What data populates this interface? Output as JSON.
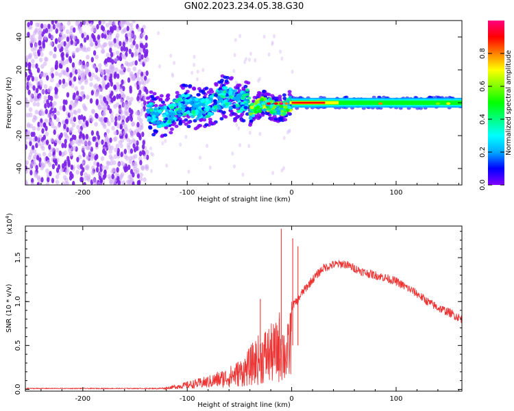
{
  "title": "GN02.2023.234.05.38.G30",
  "chart_data": [
    {
      "type": "heatmap",
      "title": "GN02.2023.234.05.38.G30",
      "xlabel": "Height of straight line (km)",
      "ylabel": "Frequency (Hz)",
      "xlim": [
        -255,
        163
      ],
      "ylim": [
        -50,
        50
      ],
      "xticks": [
        -200,
        -100,
        0,
        100
      ],
      "xtick_labels": [
        "-200",
        "-100",
        "0",
        "100"
      ],
      "yticks": [
        -40,
        -20,
        0,
        20,
        40
      ],
      "ytick_labels": [
        "-40",
        "-20",
        "0",
        "20",
        "40"
      ],
      "colorbar": {
        "label": "Normalized spectral amplitude",
        "range": [
          0,
          1
        ],
        "ticks": [
          0.0,
          0.2,
          0.4,
          0.6,
          0.8
        ],
        "tick_labels": [
          "0.0",
          "0.2",
          "0.4",
          "0.6",
          "0.8"
        ],
        "colormap": [
          "#7f00ff",
          "#0000ff",
          "#00aaff",
          "#00ffff",
          "#00ff80",
          "#00ff00",
          "#80ff00",
          "#ffff00",
          "#ff8000",
          "#ff0000",
          "#ff0080"
        ]
      },
      "features": [
        {
          "region": "noise",
          "x_range": [
            -255,
            -138
          ],
          "amplitude": "0.0-0.1"
        },
        {
          "region": "trace",
          "x_range": [
            -138,
            -40
          ],
          "center_freq_hz": [
            -8,
            5
          ],
          "amplitude": "0.1-0.4"
        },
        {
          "region": "trace",
          "x_range": [
            -40,
            0
          ],
          "center_freq_hz": [
            -5,
            0
          ],
          "amplitude": "0.2-0.9"
        },
        {
          "region": "trace",
          "x_range": [
            0,
            163
          ],
          "center_freq_hz": [
            0,
            0
          ],
          "amplitude": "0.3-1.0",
          "peak_x_range": [
            0,
            30
          ]
        }
      ]
    },
    {
      "type": "line",
      "xlabel": "Height of straight line (km)",
      "ylabel": "SNR (10 * v/v)",
      "y_multiplier": "(x10",
      "y_multiplier_exp": "4",
      "y_multiplier_close": ")",
      "xlim": [
        -255,
        163
      ],
      "ylim": [
        -0.02,
        1.86
      ],
      "xticks": [
        -200,
        -100,
        0,
        100
      ],
      "xtick_labels": [
        "-200",
        "-100",
        "0",
        "100"
      ],
      "yticks": [
        0.0,
        0.5,
        1.0,
        1.5
      ],
      "ytick_labels": [
        "0.0",
        "0.5",
        "1.0",
        "1.5"
      ],
      "color": "#ee3333",
      "series": [
        {
          "name": "SNR",
          "x": [
            -255,
            -200,
            -150,
            -120,
            -100,
            -80,
            -60,
            -45,
            -35,
            -25,
            -15,
            -10,
            -7,
            -3,
            0,
            5,
            10,
            20,
            30,
            40,
            50,
            60,
            70,
            80,
            90,
            100,
            110,
            120,
            130,
            140,
            150,
            163
          ],
          "y": [
            0.0,
            0.0,
            0.0,
            0.02,
            0.07,
            0.12,
            0.2,
            0.3,
            0.45,
            0.55,
            0.6,
            0.75,
            0.55,
            0.6,
            0.95,
            1.0,
            1.1,
            1.25,
            1.38,
            1.42,
            1.43,
            1.38,
            1.33,
            1.3,
            1.27,
            1.23,
            1.16,
            1.09,
            1.0,
            0.93,
            0.88,
            0.8
          ],
          "spikes": [
            {
              "x": -10,
              "y": 1.83
            },
            {
              "x": -30,
              "y": 1.03
            },
            {
              "x": 6,
              "y": 1.63
            },
            {
              "x": 1,
              "y": 1.72
            }
          ]
        }
      ]
    }
  ]
}
